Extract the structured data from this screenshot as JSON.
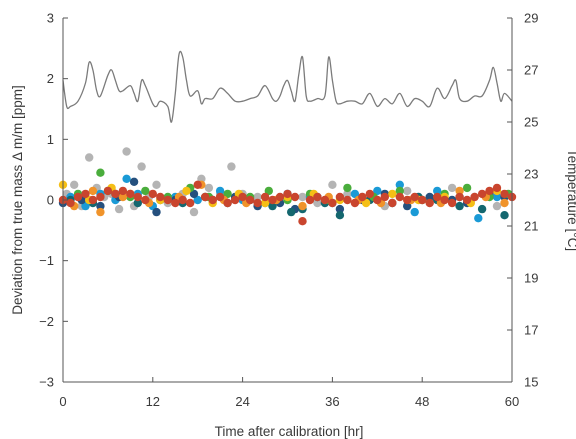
{
  "chart_data": {
    "type": "scatter",
    "xlabel": "Time after calibration [hr]",
    "ylabel": "Deviation from true mass Δ m/m [ppm]",
    "y2label": "Temperature [°C]",
    "xlim": [
      0,
      60
    ],
    "ylim": [
      -3,
      3
    ],
    "y2lim": [
      15,
      29
    ],
    "x_ticks": [
      "0",
      "12",
      "24",
      "36",
      "48",
      "60"
    ],
    "y_ticks": [
      "−3",
      "−2",
      "−1",
      "0",
      "1",
      "2",
      "3"
    ],
    "y2_ticks": [
      "15",
      "17",
      "19",
      "21",
      "23",
      "25",
      "27",
      "29"
    ],
    "grid": false,
    "colors": {
      "gray": "#b4b4b4",
      "blue": "#1a9ad6",
      "navy": "#25507e",
      "teal": "#14676f",
      "green": "#4aad3c",
      "yellow": "#f5bf16",
      "orange": "#f0932a",
      "red": "#c9452e",
      "temperature_line": "#7b7b7b",
      "axis": "#555555"
    },
    "temperature": {
      "x": [
        0,
        0.5,
        1,
        2,
        3,
        3.5,
        4,
        4.5,
        5,
        6,
        6.5,
        7,
        7.5,
        8,
        9,
        9.5,
        10,
        10.5,
        11,
        12,
        12.5,
        13,
        14,
        14.5,
        15,
        15.5,
        16,
        16.5,
        17,
        18,
        18.5,
        19,
        20,
        21,
        22,
        23,
        24,
        25,
        26,
        27,
        28,
        28.5,
        29,
        29.5,
        30,
        30.5,
        31,
        31.5,
        32,
        32.5,
        33,
        34,
        35,
        35.5,
        36,
        36.5,
        37,
        38,
        39,
        40,
        41,
        42,
        43,
        44,
        45,
        46,
        47,
        48,
        49,
        50,
        51,
        52,
        52.5,
        53,
        54,
        55,
        56,
        57,
        57.5,
        58,
        58.5,
        59,
        60
      ],
      "y": [
        26.6,
        25.6,
        25.6,
        25.8,
        26.5,
        27.3,
        27.0,
        26.2,
        26.0,
        26.8,
        27.0,
        26.6,
        26.2,
        26.2,
        26.4,
        26.1,
        25.8,
        26.6,
        26.4,
        25.7,
        25.6,
        25.8,
        25.6,
        25.0,
        26.1,
        27.6,
        27.5,
        26.6,
        26.0,
        26.2,
        25.7,
        25.9,
        25.9,
        26.3,
        26.1,
        25.8,
        25.8,
        25.9,
        26.0,
        26.4,
        25.9,
        25.8,
        26.0,
        26.4,
        26.6,
        26.2,
        25.8,
        26.8,
        27.5,
        26.0,
        25.8,
        25.9,
        26.0,
        27.5,
        26.6,
        25.8,
        25.7,
        25.8,
        25.8,
        25.7,
        26.1,
        25.6,
        25.9,
        25.7,
        26.1,
        25.6,
        25.9,
        25.8,
        25.6,
        26.3,
        25.9,
        26.4,
        26.6,
        25.9,
        25.8,
        26.0,
        26.0,
        26.6,
        27.1,
        26.5,
        25.8,
        26.1,
        25.8
      ]
    },
    "series": [
      {
        "color": "gray",
        "x": [
          0.5,
          1.5,
          2.5,
          3.5,
          4.5,
          5.5,
          6.5,
          7.5,
          8.5,
          9.5,
          10.5,
          11.5,
          12.5,
          14,
          16,
          17.5,
          18.5,
          19.5,
          21,
          22.5,
          24,
          26,
          28,
          30,
          32,
          34,
          36,
          38,
          40,
          43,
          46,
          49,
          52,
          55,
          58
        ],
        "y": [
          0.1,
          0.25,
          -0.1,
          0.7,
          0.2,
          0.05,
          0.1,
          -0.15,
          0.8,
          -0.1,
          0.55,
          0.05,
          0.25,
          -0.05,
          0.1,
          -0.2,
          0.35,
          0.2,
          0.1,
          0.55,
          0.1,
          0.05,
          -0.05,
          0.1,
          0.05,
          -0.05,
          0.25,
          0.1,
          0.05,
          -0.1,
          0.15,
          0.0,
          0.2,
          0.05,
          -0.1
        ]
      },
      {
        "color": "blue",
        "x": [
          1,
          3,
          5,
          7,
          8.5,
          10,
          12,
          15,
          18,
          21,
          24,
          27,
          30,
          33,
          36,
          39,
          42,
          45,
          47,
          50,
          53,
          55.5,
          58
        ],
        "y": [
          0.05,
          -0.1,
          0.1,
          0.0,
          0.35,
          0.1,
          -0.1,
          0.05,
          0.0,
          0.15,
          0.0,
          -0.05,
          0.1,
          0.05,
          -0.05,
          0.1,
          0.15,
          0.25,
          -0.2,
          0.15,
          0.05,
          -0.3,
          0.05
        ]
      },
      {
        "color": "navy",
        "x": [
          0,
          2.5,
          5,
          7.5,
          9.5,
          12.5,
          15,
          17.5,
          20,
          23,
          26,
          29,
          31,
          34,
          37,
          40,
          43,
          46,
          49,
          52,
          54,
          57,
          59
        ],
        "y": [
          -0.05,
          0.0,
          -0.1,
          0.05,
          0.3,
          -0.2,
          0.0,
          0.1,
          0.0,
          0.05,
          -0.1,
          -0.05,
          -0.15,
          0.05,
          -0.15,
          0.0,
          0.1,
          -0.1,
          0.05,
          0.0,
          -0.05,
          0.1,
          0.05
        ]
      },
      {
        "color": "teal",
        "x": [
          1,
          4,
          7,
          10,
          13,
          16,
          19,
          22,
          25,
          28,
          30.5,
          32,
          35,
          37,
          41,
          44,
          47.5,
          50,
          53,
          56,
          59
        ],
        "y": [
          0.0,
          -0.05,
          0.1,
          -0.05,
          0.0,
          -0.05,
          0.05,
          -0.05,
          0.0,
          -0.1,
          -0.2,
          -0.15,
          -0.05,
          -0.25,
          0.0,
          -0.05,
          0.05,
          0.0,
          -0.1,
          -0.15,
          -0.25
        ]
      },
      {
        "color": "green",
        "x": [
          2,
          5,
          6,
          9,
          11,
          14,
          17,
          19.5,
          22,
          25,
          27.5,
          30,
          33,
          35.5,
          38,
          41.5,
          45,
          48,
          51,
          54,
          57,
          59.5
        ],
        "y": [
          0.1,
          0.45,
          0.15,
          0.05,
          0.15,
          0.05,
          0.2,
          0.05,
          0.1,
          0.05,
          0.15,
          0.0,
          0.1,
          0.0,
          0.2,
          0.05,
          0.15,
          0.0,
          0.1,
          0.2,
          0.05,
          0.1
        ]
      },
      {
        "color": "yellow",
        "x": [
          0,
          3.5,
          6.5,
          9,
          13,
          16.5,
          20,
          23.5,
          27,
          30,
          33.5,
          37,
          40.5,
          44,
          47.5,
          51,
          54.5,
          58
        ],
        "y": [
          0.25,
          0.0,
          0.2,
          0.1,
          0.0,
          0.15,
          -0.05,
          0.1,
          -0.05,
          0.05,
          0.1,
          0.0,
          -0.05,
          0.1,
          0.0,
          0.05,
          -0.05,
          0.15
        ]
      },
      {
        "color": "orange",
        "x": [
          1.5,
          4,
          5,
          8,
          11.5,
          15.5,
          18.5,
          21.5,
          24.5,
          28.5,
          32,
          35.5,
          39.5,
          42.5,
          46.5,
          50.5,
          53,
          56.5,
          59
        ],
        "y": [
          -0.1,
          0.15,
          -0.2,
          0.05,
          -0.05,
          0.05,
          0.25,
          0.0,
          -0.05,
          0.0,
          -0.1,
          0.05,
          0.0,
          -0.05,
          0.0,
          -0.05,
          0.15,
          0.05,
          -0.05
        ]
      },
      {
        "color": "red",
        "x": [
          0,
          1,
          2,
          3,
          4,
          5,
          6,
          7,
          8,
          9,
          10,
          11,
          12,
          13,
          14,
          15,
          16,
          17,
          18,
          19,
          20,
          21,
          22,
          23,
          24,
          25,
          26,
          27,
          28,
          29,
          30,
          31,
          32,
          33,
          34,
          35,
          36,
          37,
          38,
          39,
          40,
          41,
          42,
          43,
          44,
          45,
          46,
          47,
          48,
          49,
          50,
          51,
          52,
          53,
          54,
          55,
          56,
          57,
          58,
          59,
          60
        ],
        "y": [
          0.0,
          -0.05,
          0.05,
          0.1,
          0.0,
          0.05,
          0.15,
          0.1,
          0.15,
          0.1,
          0.05,
          0.0,
          0.1,
          0.05,
          0.0,
          -0.05,
          0.0,
          -0.05,
          0.25,
          0.05,
          0.0,
          0.05,
          -0.05,
          0.0,
          0.05,
          0.0,
          -0.05,
          0.05,
          0.0,
          0.05,
          0.1,
          0.05,
          -0.35,
          0.0,
          0.05,
          0.0,
          -0.05,
          0.05,
          0.0,
          -0.05,
          0.05,
          0.1,
          0.0,
          0.05,
          -0.05,
          0.05,
          0.0,
          0.05,
          0.0,
          -0.05,
          0.05,
          0.0,
          -0.05,
          0.05,
          0.0,
          0.05,
          0.1,
          0.15,
          0.2,
          0.1,
          0.05
        ]
      }
    ]
  }
}
